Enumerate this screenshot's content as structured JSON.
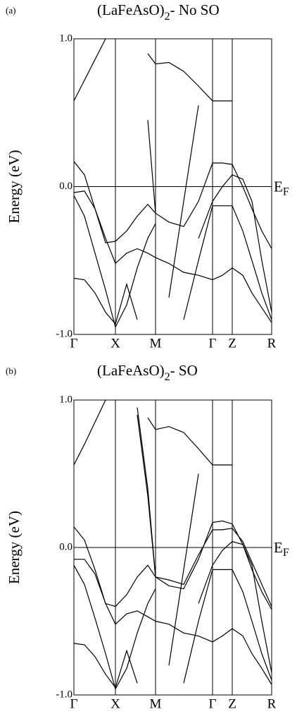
{
  "chart_data": [
    {
      "type": "line",
      "panel_label": "(a)",
      "title": "(LaFeAsO)",
      "title_sub": "2",
      "title_suffix": "- No SO",
      "y_label": "Energy (eV)",
      "fermi_label": "E",
      "fermi_label_sub": "F",
      "fermi_level": 0,
      "xlim": [
        0,
        2.81
      ],
      "ylim": [
        -1,
        1
      ],
      "yticks": [
        {
          "value": -1,
          "label": "-1.0"
        },
        {
          "value": 0,
          "label": "0.0"
        },
        {
          "value": 1,
          "label": "1.0"
        }
      ],
      "xticks": [
        {
          "value": 0,
          "label": "Γ"
        },
        {
          "value": 0.59,
          "label": "X"
        },
        {
          "value": 1.16,
          "label": "M"
        },
        {
          "value": 1.97,
          "label": "Γ"
        },
        {
          "value": 2.25,
          "label": "Z"
        },
        {
          "value": 2.81,
          "label": "R"
        }
      ],
      "grid": true,
      "x": [
        0,
        0.15,
        0.3,
        0.45,
        0.59,
        0.75,
        0.9,
        1.05,
        1.16,
        1.35,
        1.56,
        1.77,
        1.97,
        2.11,
        2.25,
        2.4,
        2.53,
        2.67,
        2.81
      ],
      "series": [
        {
          "color": "#000000",
          "values": [
            0.58,
            0.72,
            0.86,
            1.0,
            null,
            null,
            null,
            null,
            null,
            null,
            null,
            null,
            null,
            null,
            null,
            null,
            null,
            null,
            null
          ]
        },
        {
          "color": "#000000",
          "values": [
            null,
            null,
            null,
            null,
            null,
            null,
            null,
            0.9,
            0.83,
            0.84,
            0.78,
            0.68,
            0.58,
            0.58,
            0.58,
            null,
            null,
            null,
            null
          ]
        },
        {
          "color": "#000000",
          "values": [
            null,
            null,
            null,
            null,
            null,
            null,
            null,
            0.45,
            -0.18,
            -0.24,
            -0.27,
            -0.1,
            0.16,
            0.16,
            0.15,
            0.0,
            -0.15,
            -0.3,
            -0.42
          ]
        },
        {
          "color": "#000000",
          "values": [
            0.17,
            0.08,
            -0.15,
            -0.38,
            -0.37,
            -0.3,
            -0.2,
            -0.12,
            -0.18,
            null,
            null,
            null,
            null,
            null,
            null,
            null,
            null,
            null,
            null
          ]
        },
        {
          "color": "#000000",
          "values": [
            -0.04,
            -0.03,
            -0.15,
            -0.35,
            -0.52,
            -0.45,
            -0.42,
            -0.45,
            -0.48,
            -0.52,
            -0.58,
            -0.6,
            -0.63,
            -0.6,
            -0.55,
            -0.6,
            -0.72,
            -0.82,
            -0.92
          ]
        },
        {
          "color": "#000000",
          "values": [
            -0.62,
            -0.63,
            -0.72,
            -0.85,
            -0.93,
            -0.66,
            -0.9,
            null,
            null,
            null,
            null,
            null,
            null,
            null,
            null,
            null,
            null,
            null,
            null
          ]
        },
        {
          "color": "#000000",
          "values": [
            -0.06,
            -0.2,
            -0.45,
            -0.7,
            -0.95,
            -0.8,
            -0.55,
            -0.35,
            -0.25,
            null,
            null,
            null,
            null,
            null,
            null,
            null,
            null,
            null,
            null
          ]
        },
        {
          "color": "#000000",
          "values": [
            null,
            null,
            null,
            null,
            null,
            null,
            null,
            null,
            null,
            -0.75,
            -0.1,
            0.55,
            null,
            null,
            null,
            null,
            null,
            null,
            null
          ]
        },
        {
          "color": "#000000",
          "values": [
            null,
            null,
            null,
            null,
            null,
            null,
            null,
            null,
            null,
            null,
            -0.9,
            -0.5,
            -0.13,
            -0.13,
            -0.13,
            -0.3,
            -0.5,
            -0.72,
            -0.9
          ]
        },
        {
          "color": "#000000",
          "values": [
            null,
            null,
            null,
            null,
            null,
            null,
            null,
            null,
            null,
            null,
            null,
            -0.35,
            -0.1,
            0.0,
            0.08,
            0.05,
            -0.1,
            -0.5,
            -0.85
          ]
        }
      ]
    },
    {
      "type": "line",
      "panel_label": "(b)",
      "title": "(LaFeAsO)",
      "title_sub": "2",
      "title_suffix": "- SO",
      "y_label": "Energy (eV)",
      "fermi_label": "E",
      "fermi_label_sub": "F",
      "fermi_level": 0,
      "xlim": [
        0,
        2.81
      ],
      "ylim": [
        -1,
        1
      ],
      "yticks": [
        {
          "value": -1,
          "label": "-1.0"
        },
        {
          "value": 0,
          "label": "0.0"
        },
        {
          "value": 1,
          "label": "1.0"
        }
      ],
      "xticks": [
        {
          "value": 0,
          "label": "Γ"
        },
        {
          "value": 0.59,
          "label": "X"
        },
        {
          "value": 1.16,
          "label": "M"
        },
        {
          "value": 1.97,
          "label": "Γ"
        },
        {
          "value": 2.25,
          "label": "Z"
        },
        {
          "value": 2.81,
          "label": "R"
        }
      ],
      "grid": true,
      "x": [
        0,
        0.15,
        0.3,
        0.45,
        0.59,
        0.75,
        0.9,
        1.05,
        1.16,
        1.35,
        1.56,
        1.77,
        1.97,
        2.11,
        2.25,
        2.4,
        2.53,
        2.67,
        2.81
      ],
      "series": [
        {
          "color": "#000000",
          "values": [
            0.56,
            0.7,
            0.85,
            1.0,
            null,
            null,
            null,
            null,
            null,
            null,
            null,
            null,
            null,
            null,
            null,
            null,
            null,
            null,
            null
          ]
        },
        {
          "color": "#000000",
          "values": [
            null,
            null,
            null,
            null,
            null,
            null,
            null,
            0.88,
            0.8,
            0.82,
            0.78,
            0.67,
            0.56,
            0.56,
            0.56,
            null,
            null,
            null,
            null
          ]
        },
        {
          "color": "#000000",
          "values": [
            null,
            null,
            null,
            null,
            null,
            null,
            0.95,
            0.4,
            -0.2,
            -0.26,
            -0.28,
            -0.08,
            0.17,
            0.18,
            0.16,
            0.02,
            -0.15,
            -0.3,
            -0.42
          ]
        },
        {
          "color": "#000000",
          "values": [
            null,
            null,
            null,
            null,
            null,
            null,
            0.9,
            0.35,
            -0.2,
            -0.22,
            -0.25,
            -0.05,
            0.12,
            0.12,
            0.13,
            0.04,
            -0.1,
            -0.25,
            -0.4
          ]
        },
        {
          "color": "#000000",
          "values": [
            0.14,
            0.05,
            -0.15,
            -0.38,
            -0.4,
            -0.32,
            -0.2,
            -0.12,
            -0.2,
            null,
            null,
            null,
            null,
            null,
            null,
            null,
            null,
            null,
            null
          ]
        },
        {
          "color": "#000000",
          "values": [
            -0.08,
            -0.08,
            -0.18,
            -0.38,
            -0.52,
            -0.45,
            -0.43,
            -0.47,
            -0.5,
            -0.52,
            -0.58,
            -0.6,
            -0.64,
            -0.6,
            -0.55,
            -0.6,
            -0.72,
            -0.82,
            -0.93
          ]
        },
        {
          "color": "#000000",
          "values": [
            -0.65,
            -0.66,
            -0.74,
            -0.86,
            -0.95,
            -0.7,
            -0.92,
            null,
            null,
            null,
            null,
            null,
            null,
            null,
            null,
            null,
            null,
            null,
            null
          ]
        },
        {
          "color": "#000000",
          "values": [
            -0.12,
            -0.25,
            -0.48,
            -0.72,
            -0.96,
            -0.82,
            -0.58,
            -0.38,
            -0.28,
            null,
            null,
            null,
            null,
            null,
            null,
            null,
            null,
            null,
            null
          ]
        },
        {
          "color": "#000000",
          "values": [
            null,
            null,
            null,
            null,
            null,
            null,
            null,
            null,
            null,
            -0.8,
            -0.15,
            0.5,
            null,
            null,
            null,
            null,
            null,
            null,
            null
          ]
        },
        {
          "color": "#000000",
          "values": [
            null,
            null,
            null,
            null,
            null,
            null,
            null,
            null,
            null,
            null,
            -0.92,
            -0.5,
            -0.15,
            -0.15,
            -0.15,
            -0.3,
            -0.5,
            -0.72,
            -0.9
          ]
        },
        {
          "color": "#000000",
          "values": [
            null,
            null,
            null,
            null,
            null,
            null,
            null,
            null,
            null,
            null,
            null,
            -0.38,
            -0.12,
            -0.02,
            0.04,
            0.02,
            -0.12,
            -0.5,
            -0.85
          ]
        }
      ]
    }
  ]
}
